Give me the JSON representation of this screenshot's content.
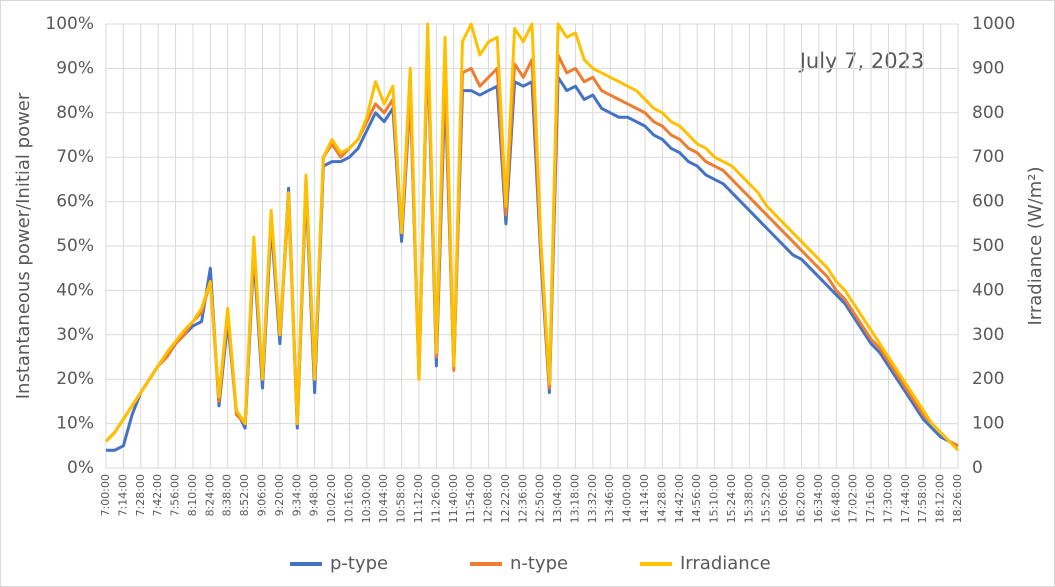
{
  "chart_data": {
    "type": "line",
    "annotation": "July 7, 2023",
    "y_label": "Instantaneous power/Initial power",
    "y2_label": "Irradiance (W/m²)",
    "categories": [
      "7:00:00",
      null,
      "7:14:00",
      null,
      "7:28:00",
      null,
      "7:42:00",
      null,
      "7:56:00",
      null,
      "8:10:00",
      null,
      "8:24:00",
      null,
      "8:38:00",
      null,
      "8:52:00",
      null,
      "9:06:00",
      null,
      "9:20:00",
      null,
      "9:34:00",
      null,
      "9:48:00",
      null,
      "10:02:00",
      null,
      "10:16:00",
      null,
      "10:30:00",
      null,
      "10:44:00",
      null,
      "10:58:00",
      null,
      "11:12:00",
      null,
      "11:26:00",
      null,
      "11:40:00",
      null,
      "11:54:00",
      null,
      "12:08:00",
      null,
      "12:22:00",
      null,
      "12:36:00",
      null,
      "12:50:00",
      null,
      "13:04:00",
      null,
      "13:18:00",
      null,
      "13:32:00",
      null,
      "13:46:00",
      null,
      "14:00:00",
      null,
      "14:14:00",
      null,
      "14:28:00",
      null,
      "14:42:00",
      null,
      "14:56:00",
      null,
      "15:10:00",
      null,
      "15:24:00",
      null,
      "15:38:00",
      null,
      "15:52:00",
      null,
      "16:06:00",
      null,
      "16:20:00",
      null,
      "16:34:00",
      null,
      "16:48:00",
      null,
      "17:02:00",
      null,
      "17:16:00",
      null,
      "17:30:00",
      null,
      "17:44:00",
      null,
      "17:58:00",
      null,
      "18:12:00",
      null,
      "18:26:00"
    ],
    "series": [
      {
        "name": "p-type",
        "color": "#4472c4",
        "values": [
          4,
          4,
          5,
          12,
          17,
          20,
          23,
          25,
          28,
          30,
          32,
          33,
          45,
          14,
          33,
          13,
          9,
          48,
          18,
          55,
          28,
          63,
          9,
          63,
          17,
          68,
          69,
          69,
          70,
          72,
          76,
          80,
          78,
          81,
          51,
          84,
          21,
          95,
          23,
          86,
          23,
          85,
          85,
          84,
          85,
          86,
          55,
          87,
          86,
          87,
          48,
          17,
          88,
          85,
          86,
          83,
          84,
          81,
          80,
          79,
          79,
          78,
          77,
          75,
          74,
          72,
          71,
          69,
          68,
          66,
          65,
          64,
          62,
          60,
          58,
          56,
          54,
          52,
          50,
          48,
          47,
          45,
          43,
          41,
          39,
          37,
          34,
          31,
          28,
          26,
          23,
          20,
          17,
          14,
          11,
          9,
          7,
          6,
          5
        ]
      },
      {
        "name": "n-type",
        "color": "#ed7d31",
        "values": [
          6,
          8,
          11,
          14,
          17,
          20,
          23,
          25,
          28,
          30,
          33,
          35,
          42,
          15,
          35,
          12,
          10,
          50,
          20,
          57,
          30,
          60,
          10,
          65,
          20,
          70,
          73,
          70,
          72,
          74,
          78,
          82,
          80,
          83,
          53,
          85,
          20,
          97,
          25,
          90,
          22,
          89,
          90,
          86,
          88,
          90,
          57,
          91,
          88,
          92,
          50,
          18,
          93,
          89,
          90,
          87,
          88,
          85,
          84,
          83,
          82,
          81,
          80,
          78,
          77,
          75,
          74,
          72,
          71,
          69,
          68,
          67,
          65,
          63,
          61,
          59,
          57,
          55,
          53,
          51,
          49,
          47,
          45,
          43,
          40,
          38,
          35,
          32,
          29,
          27,
          24,
          21,
          18,
          15,
          12,
          10,
          8,
          6,
          5
        ]
      },
      {
        "name": "Irradiance",
        "color": "#ffc000",
        "axis": "y2",
        "values": [
          60,
          80,
          110,
          140,
          170,
          200,
          230,
          260,
          285,
          310,
          330,
          360,
          420,
          160,
          360,
          130,
          100,
          520,
          200,
          580,
          300,
          620,
          100,
          660,
          200,
          700,
          740,
          710,
          720,
          740,
          790,
          870,
          820,
          860,
          530,
          900,
          200,
          1000,
          260,
          970,
          230,
          960,
          1000,
          930,
          960,
          970,
          590,
          990,
          960,
          1000,
          520,
          190,
          1000,
          970,
          980,
          920,
          900,
          890,
          880,
          870,
          860,
          850,
          830,
          810,
          800,
          780,
          770,
          750,
          730,
          720,
          700,
          690,
          680,
          660,
          640,
          620,
          590,
          570,
          550,
          530,
          510,
          490,
          470,
          450,
          420,
          400,
          370,
          340,
          310,
          280,
          250,
          220,
          190,
          160,
          130,
          100,
          80,
          60,
          40
        ]
      }
    ],
    "ylim": [
      0,
      100
    ],
    "yticks": [
      {
        "value": 0,
        "label": "0%"
      },
      {
        "value": 10,
        "label": "10%"
      },
      {
        "value": 20,
        "label": "20%"
      },
      {
        "value": 30,
        "label": "30%"
      },
      {
        "value": 40,
        "label": "40%"
      },
      {
        "value": 50,
        "label": "50%"
      },
      {
        "value": 60,
        "label": "60%"
      },
      {
        "value": 70,
        "label": "70%"
      },
      {
        "value": 80,
        "label": "80%"
      },
      {
        "value": 90,
        "label": "90%"
      },
      {
        "value": 100,
        "label": "100%"
      }
    ],
    "y2lim": [
      0,
      1000
    ],
    "y2ticks": [
      0,
      100,
      200,
      300,
      400,
      500,
      600,
      700,
      800,
      900,
      1000
    ],
    "grid": true,
    "legend": "bottom"
  }
}
